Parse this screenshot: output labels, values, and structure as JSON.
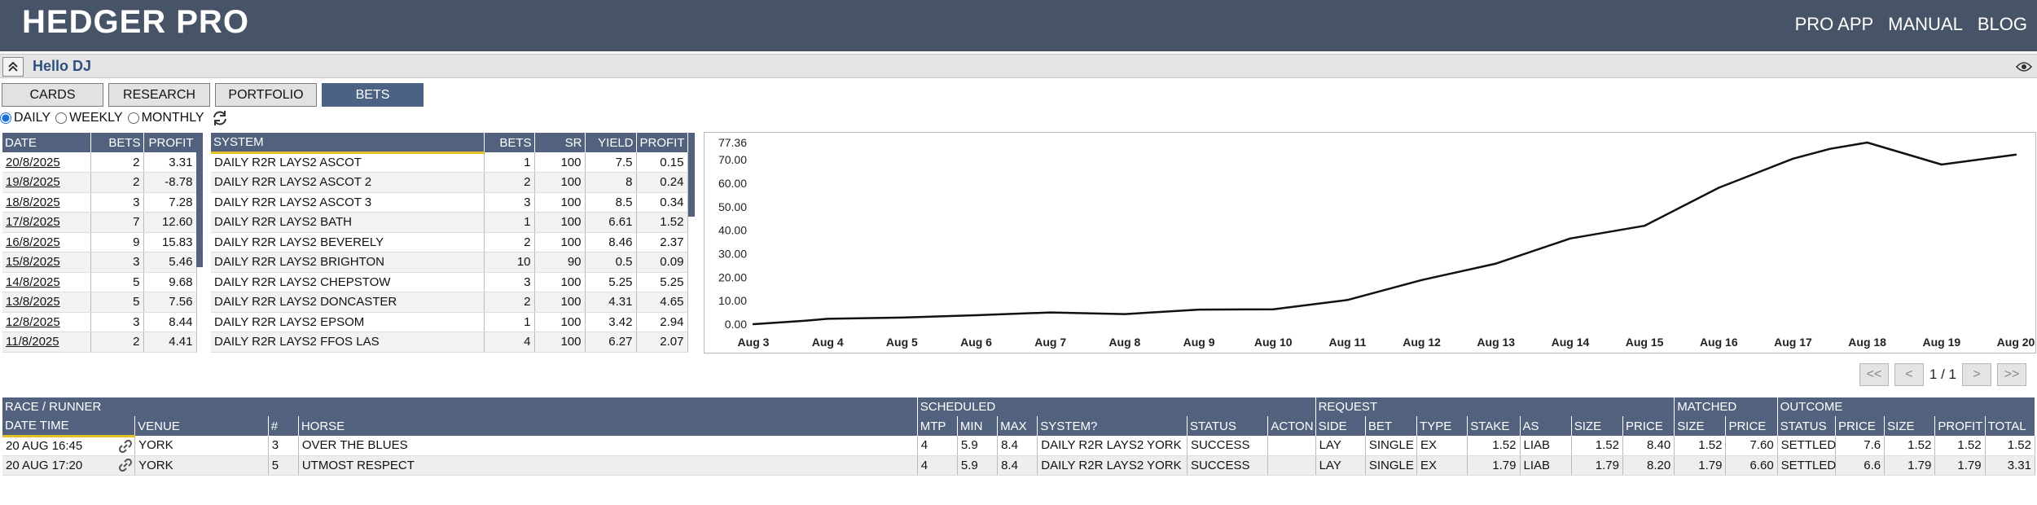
{
  "app": {
    "logo": "HEDGER PRO",
    "nav": [
      "PRO APP",
      "MANUAL",
      "BLOG"
    ]
  },
  "greeting": "Hello DJ",
  "tabs": [
    "CARDS",
    "RESEARCH",
    "PORTFOLIO",
    "BETS"
  ],
  "active_tab": "BETS",
  "period": {
    "options": [
      "DAILY",
      "WEEKLY",
      "MONTHLY"
    ],
    "selected": "DAILY"
  },
  "daily": {
    "headers": [
      "DATE",
      "BETS",
      "PROFIT"
    ],
    "rows": [
      [
        "20/8/2025",
        "2",
        "3.31"
      ],
      [
        "19/8/2025",
        "2",
        "-8.78"
      ],
      [
        "18/8/2025",
        "3",
        "7.28"
      ],
      [
        "17/8/2025",
        "7",
        "12.60"
      ],
      [
        "16/8/2025",
        "9",
        "15.83"
      ],
      [
        "15/8/2025",
        "3",
        "5.46"
      ],
      [
        "14/8/2025",
        "5",
        "9.68"
      ],
      [
        "13/8/2025",
        "5",
        "7.56"
      ],
      [
        "12/8/2025",
        "3",
        "8.44"
      ],
      [
        "11/8/2025",
        "2",
        "4.41"
      ]
    ]
  },
  "systems": {
    "headers": [
      "SYSTEM",
      "BETS",
      "SR",
      "YIELD",
      "PROFIT"
    ],
    "rows": [
      [
        "DAILY R2R LAYS2 ASCOT",
        "1",
        "100",
        "7.5",
        "0.15"
      ],
      [
        "DAILY R2R LAYS2 ASCOT 2",
        "2",
        "100",
        "8",
        "0.24"
      ],
      [
        "DAILY R2R LAYS2 ASCOT 3",
        "3",
        "100",
        "8.5",
        "0.34"
      ],
      [
        "DAILY R2R LAYS2 BATH",
        "1",
        "100",
        "6.61",
        "1.52"
      ],
      [
        "DAILY R2R LAYS2 BEVERELY",
        "2",
        "100",
        "8.46",
        "2.37"
      ],
      [
        "DAILY R2R LAYS2 BRIGHTON",
        "10",
        "90",
        "0.5",
        "0.09"
      ],
      [
        "DAILY R2R LAYS2 CHEPSTOW",
        "3",
        "100",
        "5.25",
        "5.25"
      ],
      [
        "DAILY R2R LAYS2 DONCASTER",
        "2",
        "100",
        "4.31",
        "4.65"
      ],
      [
        "DAILY R2R LAYS2 EPSOM",
        "1",
        "100",
        "3.42",
        "2.94"
      ],
      [
        "DAILY R2R LAYS2 FFOS LAS",
        "4",
        "100",
        "6.27",
        "2.07"
      ]
    ]
  },
  "chart_data": {
    "type": "line",
    "categories": [
      "Aug 3",
      "Aug 4",
      "Aug 5",
      "Aug 6",
      "Aug 7",
      "Aug 8",
      "Aug 9",
      "Aug 10",
      "Aug 11",
      "Aug 12",
      "Aug 13",
      "Aug 14",
      "Aug 15",
      "Aug 16",
      "Aug 17",
      "Aug 18",
      "Aug 19",
      "Aug 20"
    ],
    "x": [
      "Aug 3",
      "Aug 3.7",
      "Aug 4",
      "Aug 5",
      "Aug 6",
      "Aug 7",
      "Aug 8",
      "Aug 9",
      "Aug 10",
      "Aug 11",
      "Aug 12",
      "Aug 13",
      "Aug 14",
      "Aug 15",
      "Aug 16",
      "Aug 17",
      "Aug 17.5",
      "Aug 18",
      "Aug 19",
      "Aug 20"
    ],
    "values": [
      0,
      1.5,
      2.3,
      2.8,
      3.8,
      5.0,
      4.3,
      6.2,
      6.3,
      10.3,
      18.8,
      25.8,
      36.5,
      41.9,
      58.1,
      70.5,
      74.7,
      77.36,
      68.0,
      72.2
    ],
    "yticks": [
      "77.36",
      "70.00",
      "60.00",
      "50.00",
      "40.00",
      "30.00",
      "20.00",
      "10.00",
      "0.00"
    ],
    "ylim": [
      0,
      77.36
    ],
    "grid": false,
    "color": "#111111"
  },
  "pager": {
    "text": "1 / 1",
    "first": "<<",
    "prev": "<",
    "next": ">",
    "last": ">>"
  },
  "bottom": {
    "groups": [
      "RACE / RUNNER",
      "SCHEDULED",
      "REQUEST",
      "MATCHED",
      "OUTCOME"
    ],
    "headers": [
      "DATE TIME",
      "VENUE",
      "#",
      "HORSE",
      "MTP",
      "MIN",
      "MAX",
      "SYSTEM?",
      "STATUS",
      "ACTON",
      "SIDE",
      "BET",
      "TYPE",
      "STAKE",
      "AS",
      "SIZE",
      "PRICE",
      "SIZE",
      "PRICE",
      "STATUS",
      "PRICE",
      "SIZE",
      "PROFIT",
      "TOTAL"
    ],
    "rows": [
      [
        "20 AUG 16:45",
        "YORK",
        "3",
        "OVER THE BLUES",
        "4",
        "5.9",
        "8.4",
        "DAILY R2R LAYS2 YORK",
        "SUCCESS",
        "",
        "LAY",
        "SINGLE",
        "EX",
        "1.52",
        "LIAB",
        "1.52",
        "8.40",
        "1.52",
        "7.60",
        "SETTLED",
        "7.6",
        "1.52",
        "1.52",
        "1.52"
      ],
      [
        "20 AUG 17:20",
        "YORK",
        "5",
        "UTMOST RESPECT",
        "4",
        "5.9",
        "8.4",
        "DAILY R2R LAYS2 YORK",
        "SUCCESS",
        "",
        "LAY",
        "SINGLE",
        "EX",
        "1.79",
        "LIAB",
        "1.79",
        "8.20",
        "1.79",
        "6.60",
        "SETTLED",
        "6.6",
        "1.79",
        "1.79",
        "3.31"
      ]
    ]
  },
  "colors": {
    "header": "#475467",
    "table_header": "#52627e",
    "tab_active": "#4b6285",
    "accent": "#e3c02a"
  }
}
